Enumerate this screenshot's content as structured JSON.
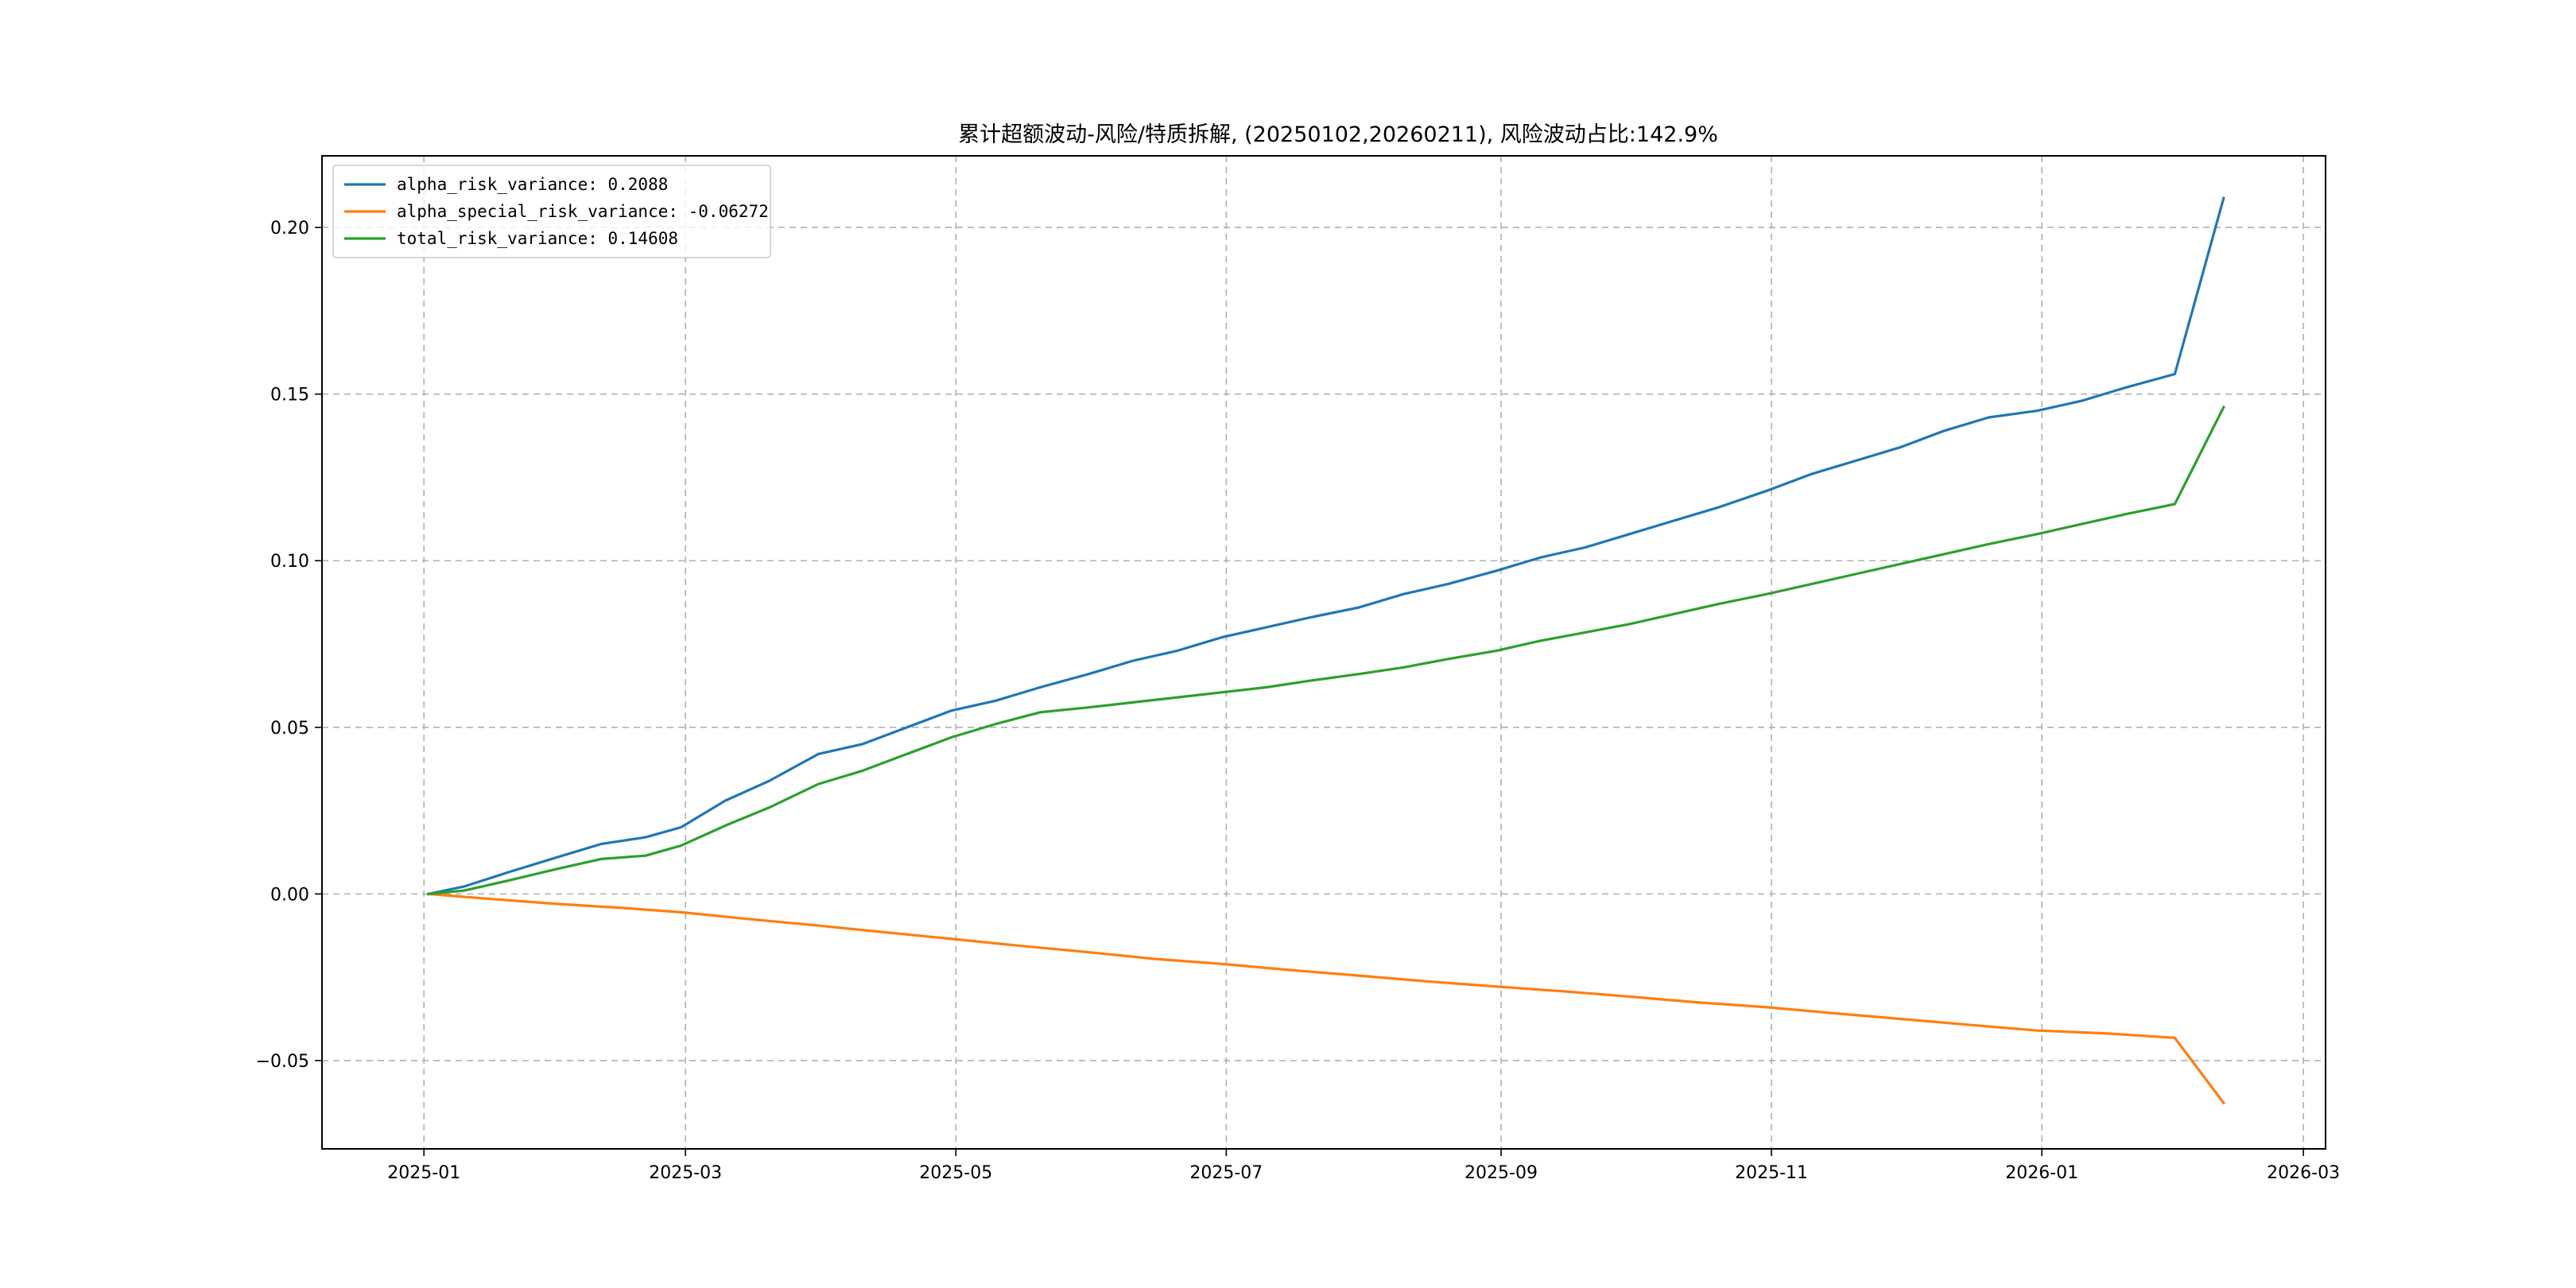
{
  "chart_data": {
    "type": "line",
    "title": "累计超额波动-风险/特质拆解, (20250102,20260211), 风险波动占比:142.9%",
    "xlabel": "",
    "ylabel": "",
    "xlim": [
      "2024-12-09",
      "2026-03-06"
    ],
    "ylim": [
      -0.0765,
      0.2215
    ],
    "grid": true,
    "legend_position": "upper-left",
    "x_ticks": [
      {
        "date": "2025-01-01",
        "label": "2025-01"
      },
      {
        "date": "2025-03-01",
        "label": "2025-03"
      },
      {
        "date": "2025-05-01",
        "label": "2025-05"
      },
      {
        "date": "2025-07-01",
        "label": "2025-07"
      },
      {
        "date": "2025-09-01",
        "label": "2025-09"
      },
      {
        "date": "2025-11-01",
        "label": "2025-11"
      },
      {
        "date": "2026-01-01",
        "label": "2026-01"
      },
      {
        "date": "2026-03-01",
        "label": "2026-03"
      }
    ],
    "y_ticks": [
      {
        "value": 0.2,
        "label": "0.20"
      },
      {
        "value": 0.15,
        "label": "0.15"
      },
      {
        "value": 0.1,
        "label": "0.10"
      },
      {
        "value": 0.05,
        "label": "0.05"
      },
      {
        "value": 0.0,
        "label": "0.00"
      },
      {
        "value": -0.05,
        "label": "−0.05"
      }
    ],
    "series": [
      {
        "name": "alpha_risk_variance: 0.2088",
        "color": "#1f77b4",
        "points": [
          [
            "2025-01-02",
            0.0
          ],
          [
            "2025-01-10",
            0.0022
          ],
          [
            "2025-01-20",
            0.0065
          ],
          [
            "2025-01-31",
            0.011
          ],
          [
            "2025-02-10",
            0.015
          ],
          [
            "2025-02-20",
            0.017
          ],
          [
            "2025-02-28",
            0.02
          ],
          [
            "2025-03-10",
            0.028
          ],
          [
            "2025-03-20",
            0.034
          ],
          [
            "2025-03-31",
            0.042
          ],
          [
            "2025-04-10",
            0.045
          ],
          [
            "2025-04-20",
            0.05
          ],
          [
            "2025-04-30",
            0.055
          ],
          [
            "2025-05-10",
            0.058
          ],
          [
            "2025-05-20",
            0.062
          ],
          [
            "2025-05-31",
            0.066
          ],
          [
            "2025-06-10",
            0.07
          ],
          [
            "2025-06-20",
            0.073
          ],
          [
            "2025-06-30",
            0.077
          ],
          [
            "2025-07-10",
            0.08
          ],
          [
            "2025-07-20",
            0.083
          ],
          [
            "2025-07-31",
            0.086
          ],
          [
            "2025-08-10",
            0.09
          ],
          [
            "2025-08-20",
            0.093
          ],
          [
            "2025-08-31",
            0.097
          ],
          [
            "2025-09-10",
            0.101
          ],
          [
            "2025-09-20",
            0.104
          ],
          [
            "2025-09-30",
            0.108
          ],
          [
            "2025-10-10",
            0.112
          ],
          [
            "2025-10-20",
            0.116
          ],
          [
            "2025-10-31",
            0.121
          ],
          [
            "2025-11-10",
            0.126
          ],
          [
            "2025-11-20",
            0.13
          ],
          [
            "2025-11-30",
            0.134
          ],
          [
            "2025-12-10",
            0.139
          ],
          [
            "2025-12-20",
            0.143
          ],
          [
            "2025-12-31",
            0.145
          ],
          [
            "2026-01-10",
            0.148
          ],
          [
            "2026-01-20",
            0.152
          ],
          [
            "2026-01-31",
            0.156
          ],
          [
            "2026-02-11",
            0.2088
          ]
        ]
      },
      {
        "name": "alpha_special_risk_variance: -0.06272",
        "color": "#ff7f0e",
        "points": [
          [
            "2025-01-02",
            0.0
          ],
          [
            "2025-01-15",
            -0.0014
          ],
          [
            "2025-01-31",
            -0.003
          ],
          [
            "2025-02-15",
            -0.0042
          ],
          [
            "2025-02-28",
            -0.0055
          ],
          [
            "2025-03-15",
            -0.0075
          ],
          [
            "2025-03-31",
            -0.0095
          ],
          [
            "2025-04-15",
            -0.0115
          ],
          [
            "2025-04-30",
            -0.0135
          ],
          [
            "2025-05-15",
            -0.0155
          ],
          [
            "2025-05-31",
            -0.0175
          ],
          [
            "2025-06-15",
            -0.0195
          ],
          [
            "2025-06-30",
            -0.021
          ],
          [
            "2025-07-15",
            -0.0228
          ],
          [
            "2025-07-31",
            -0.0245
          ],
          [
            "2025-08-15",
            -0.0262
          ],
          [
            "2025-08-31",
            -0.0278
          ],
          [
            "2025-09-15",
            -0.0292
          ],
          [
            "2025-09-30",
            -0.0308
          ],
          [
            "2025-10-15",
            -0.0325
          ],
          [
            "2025-10-31",
            -0.034
          ],
          [
            "2025-11-15",
            -0.0358
          ],
          [
            "2025-11-30",
            -0.0375
          ],
          [
            "2025-12-15",
            -0.0392
          ],
          [
            "2025-12-31",
            -0.041
          ],
          [
            "2026-01-15",
            -0.0418
          ],
          [
            "2026-01-31",
            -0.0432
          ],
          [
            "2026-02-11",
            -0.06272
          ]
        ]
      },
      {
        "name": "total_risk_variance: 0.14608",
        "color": "#2ca02c",
        "points": [
          [
            "2025-01-02",
            0.0
          ],
          [
            "2025-01-10",
            0.001
          ],
          [
            "2025-01-20",
            0.004
          ],
          [
            "2025-01-31",
            0.0075
          ],
          [
            "2025-02-10",
            0.0105
          ],
          [
            "2025-02-20",
            0.0115
          ],
          [
            "2025-02-28",
            0.0145
          ],
          [
            "2025-03-10",
            0.0205
          ],
          [
            "2025-03-20",
            0.026
          ],
          [
            "2025-03-31",
            0.033
          ],
          [
            "2025-04-10",
            0.037
          ],
          [
            "2025-04-20",
            0.042
          ],
          [
            "2025-04-30",
            0.047
          ],
          [
            "2025-05-10",
            0.051
          ],
          [
            "2025-05-20",
            0.0545
          ],
          [
            "2025-05-31",
            0.056
          ],
          [
            "2025-06-10",
            0.0575
          ],
          [
            "2025-06-20",
            0.059
          ],
          [
            "2025-06-30",
            0.0605
          ],
          [
            "2025-07-10",
            0.062
          ],
          [
            "2025-07-20",
            0.064
          ],
          [
            "2025-07-31",
            0.066
          ],
          [
            "2025-08-10",
            0.068
          ],
          [
            "2025-08-20",
            0.0705
          ],
          [
            "2025-08-31",
            0.073
          ],
          [
            "2025-09-10",
            0.076
          ],
          [
            "2025-09-20",
            0.0785
          ],
          [
            "2025-09-30",
            0.081
          ],
          [
            "2025-10-10",
            0.084
          ],
          [
            "2025-10-20",
            0.087
          ],
          [
            "2025-10-31",
            0.09
          ],
          [
            "2025-11-10",
            0.093
          ],
          [
            "2025-11-20",
            0.096
          ],
          [
            "2025-11-30",
            0.099
          ],
          [
            "2025-12-10",
            0.102
          ],
          [
            "2025-12-20",
            0.105
          ],
          [
            "2025-12-31",
            0.108
          ],
          [
            "2026-01-10",
            0.111
          ],
          [
            "2026-01-20",
            0.114
          ],
          [
            "2026-01-31",
            0.117
          ],
          [
            "2026-02-11",
            0.14608
          ]
        ]
      }
    ]
  }
}
